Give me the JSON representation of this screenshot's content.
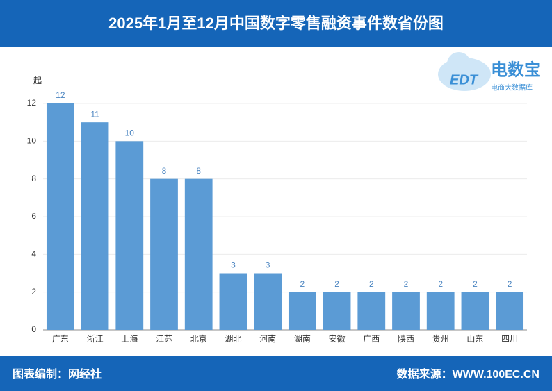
{
  "chart_data": {
    "type": "bar",
    "title": "2025年1月至12月中国数字零售融资事件数省份图",
    "y_unit": "起",
    "categories": [
      "广东",
      "浙江",
      "上海",
      "江苏",
      "北京",
      "湖北",
      "河南",
      "湖南",
      "安徽",
      "广西",
      "陕西",
      "贵州",
      "山东",
      "四川"
    ],
    "values": [
      12,
      11,
      10,
      8,
      8,
      3,
      3,
      2,
      2,
      2,
      2,
      2,
      2,
      2
    ],
    "color": "#5b9bd5",
    "ylim": [
      0,
      12
    ],
    "yticks": [
      0,
      2,
      4,
      6,
      8,
      10,
      12
    ],
    "grid": true
  },
  "logo": {
    "name": "电数宝",
    "subtitle": "电商大数据库",
    "mark": "EDT"
  },
  "footer": {
    "left": "图表编制：网经社",
    "right": "数据来源：WWW.100EC.CN"
  }
}
